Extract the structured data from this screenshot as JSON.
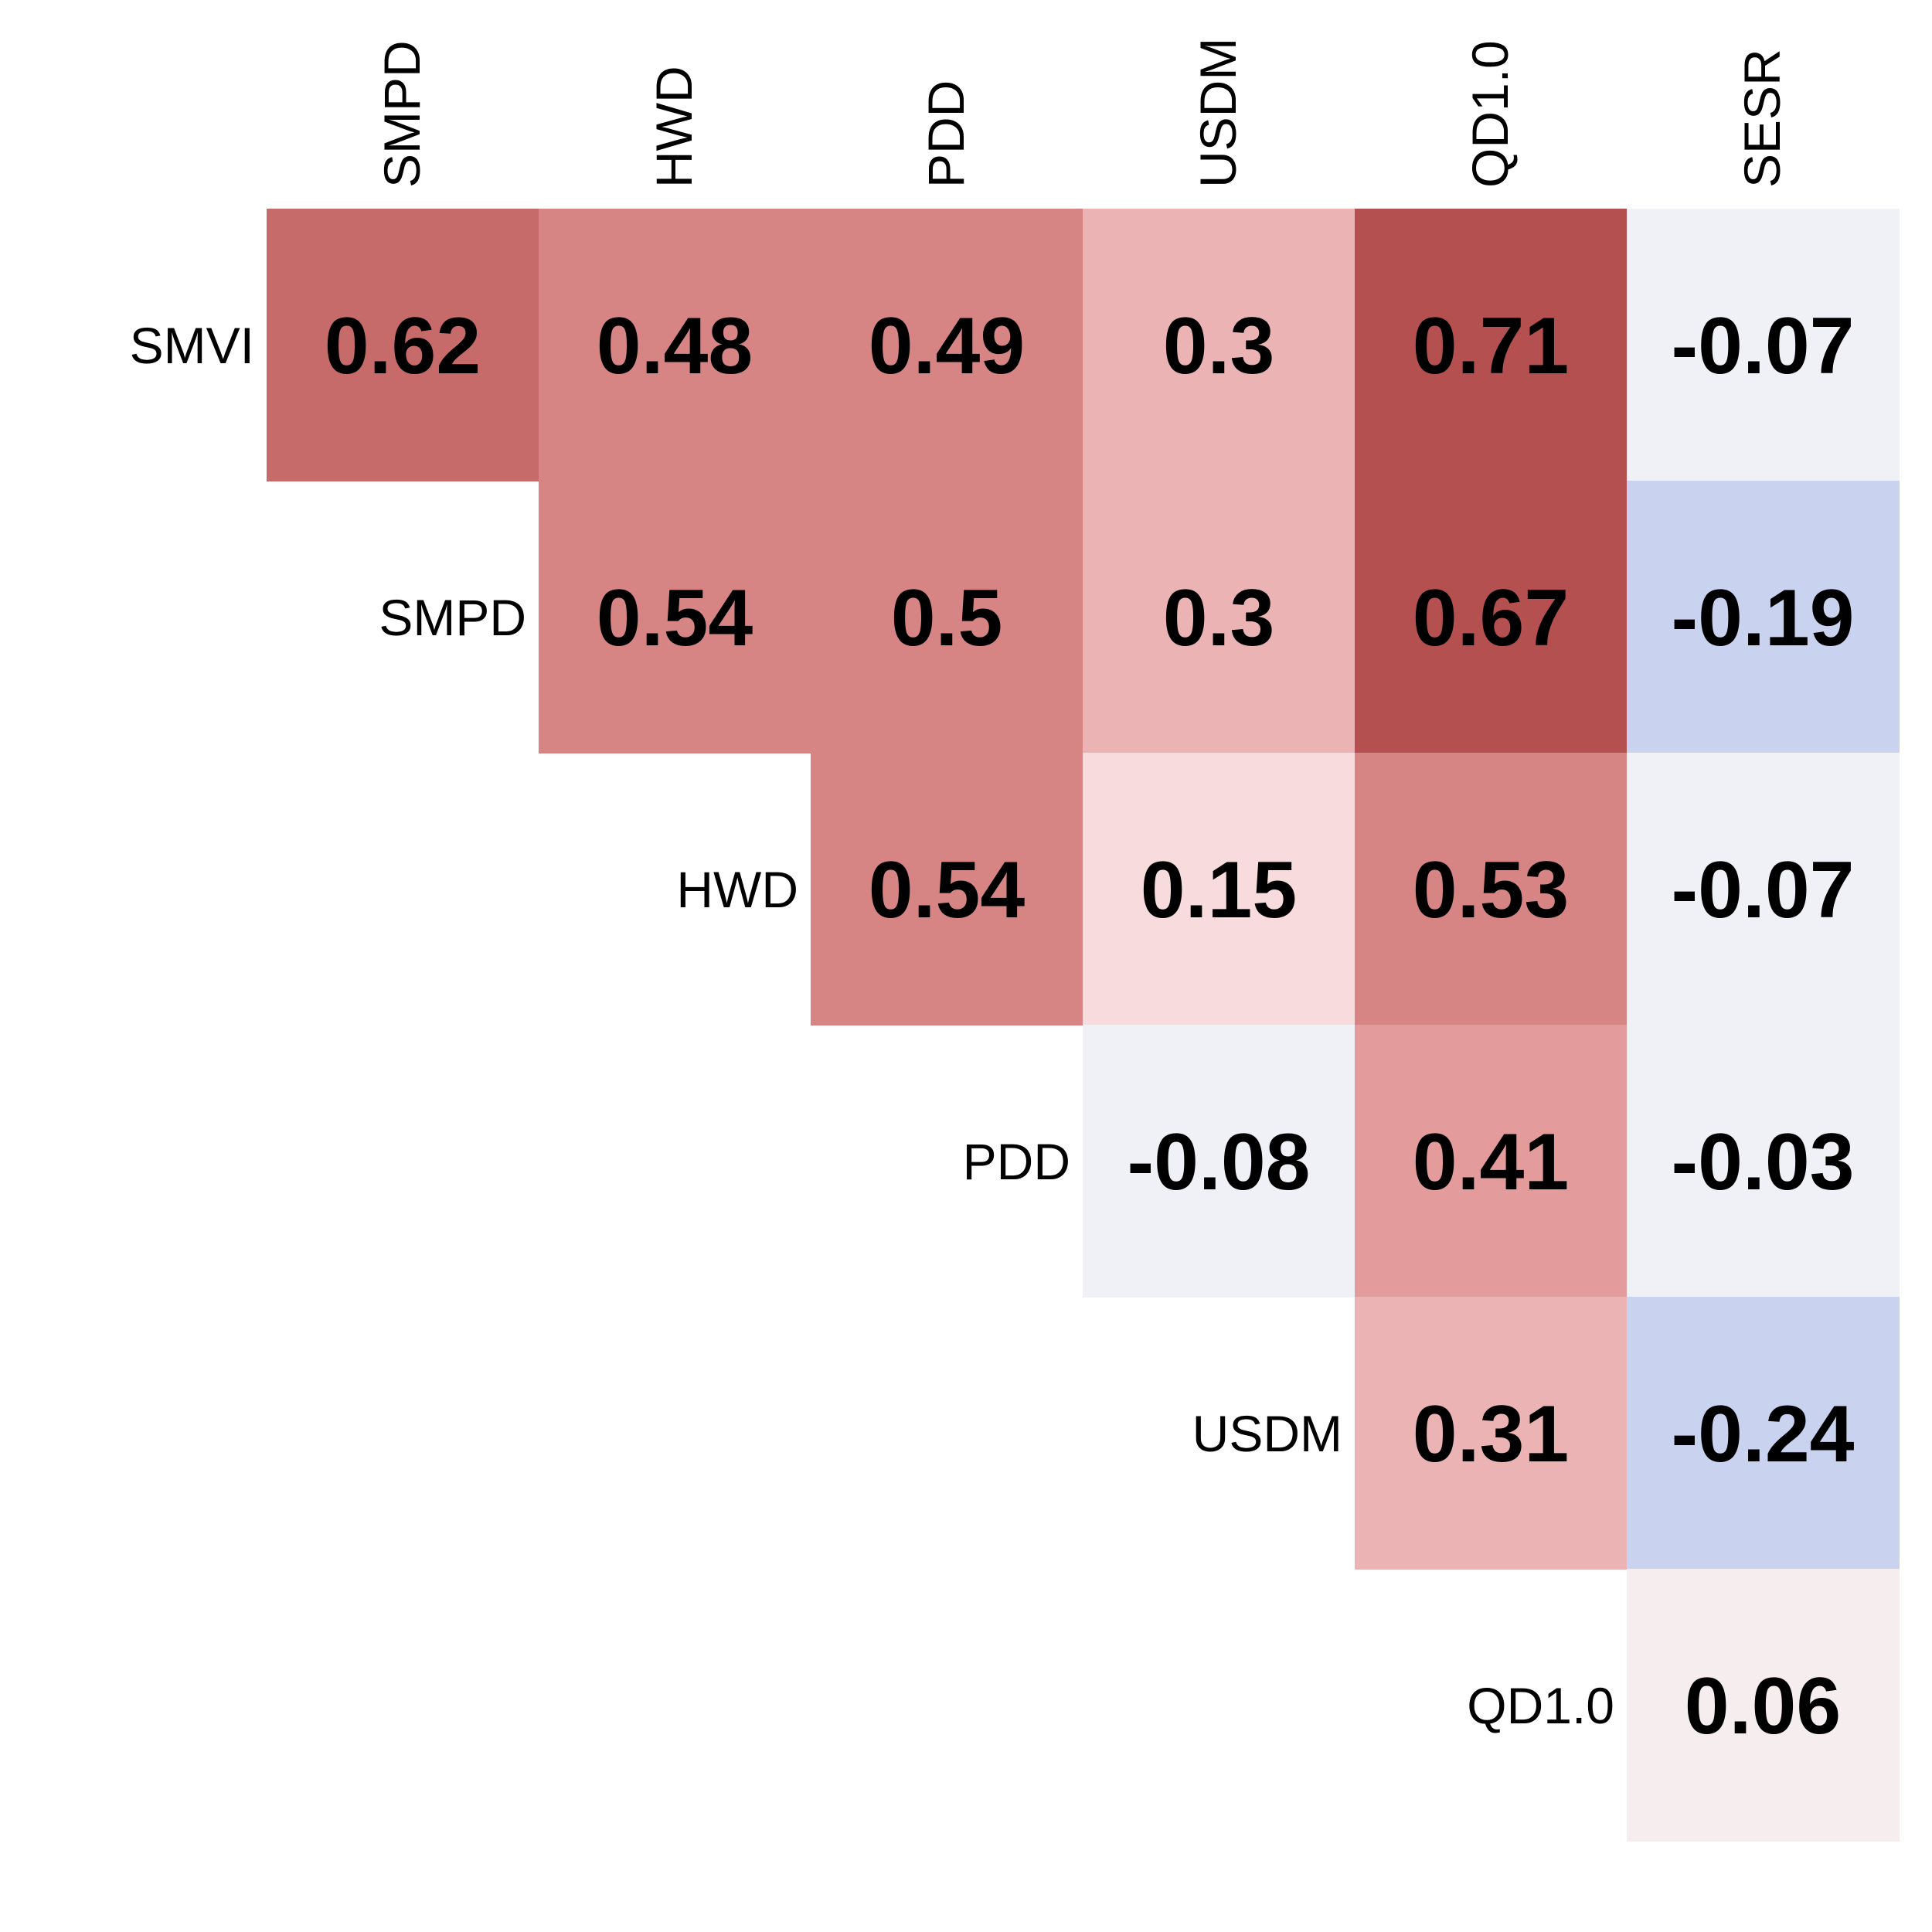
{
  "chart_data": {
    "type": "heatmap",
    "title": "",
    "xlabel": "",
    "ylabel": "",
    "columns": [
      "SMPD",
      "HWD",
      "PDD",
      "USDM",
      "QD1.0",
      "SESR"
    ],
    "rows": [
      "SMVI",
      "SMPD",
      "HWD",
      "PDD",
      "USDM",
      "QD1.0"
    ],
    "values": [
      [
        0.62,
        0.48,
        0.49,
        0.3,
        0.71,
        -0.07
      ],
      [
        null,
        0.54,
        0.5,
        0.3,
        0.67,
        -0.19
      ],
      [
        null,
        null,
        0.54,
        0.15,
        0.53,
        -0.07
      ],
      [
        null,
        null,
        null,
        -0.08,
        0.41,
        -0.03
      ],
      [
        null,
        null,
        null,
        null,
        0.31,
        -0.24
      ],
      [
        null,
        null,
        null,
        null,
        null,
        0.06
      ]
    ],
    "value_labels": [
      [
        "0.62",
        "0.48",
        "0.49",
        "0.3",
        "0.71",
        "-0.07"
      ],
      [
        "",
        "0.54",
        "0.5",
        "0.3",
        "0.67",
        "-0.19"
      ],
      [
        "",
        "",
        "0.54",
        "0.15",
        "0.53",
        "-0.07"
      ],
      [
        "",
        "",
        "",
        "-0.08",
        "0.41",
        "-0.03"
      ],
      [
        "",
        "",
        "",
        "",
        "0.31",
        "-0.24"
      ],
      [
        "",
        "",
        "",
        "",
        "",
        "0.06"
      ]
    ],
    "layout": "upper-triangle",
    "grid": false,
    "legend": "none",
    "colors": {
      "strong_positive": "#b55050",
      "mid_positive": "#c66a6a",
      "moderate_positive": "#d68484",
      "light_positive": "#e39b9b",
      "faint_positive": "#ebb3b3",
      "very_faint_positive": "#f8dcdd",
      "near_zero_positive": "#f6eeee",
      "near_zero_negative": "#f0f1f7",
      "moderate_negative": "#c9d3f0",
      "text": "#000000"
    },
    "cell_colors": [
      [
        "#c66a6a",
        "#d68484",
        "#d68484",
        "#ebb3b3",
        "#b55050",
        "#f0f1f7"
      ],
      [
        null,
        "#d68484",
        "#d68484",
        "#ebb3b3",
        "#b55050",
        "#c9d3f0"
      ],
      [
        null,
        null,
        "#d68484",
        "#f8dcdd",
        "#d68484",
        "#f0f1f7"
      ],
      [
        null,
        null,
        null,
        "#f0f1f7",
        "#e39b9b",
        "#f0f1f7"
      ],
      [
        null,
        null,
        null,
        null,
        "#ebb3b3",
        "#c9d3f0"
      ],
      [
        null,
        null,
        null,
        null,
        null,
        "#f6eeee"
      ]
    ]
  }
}
